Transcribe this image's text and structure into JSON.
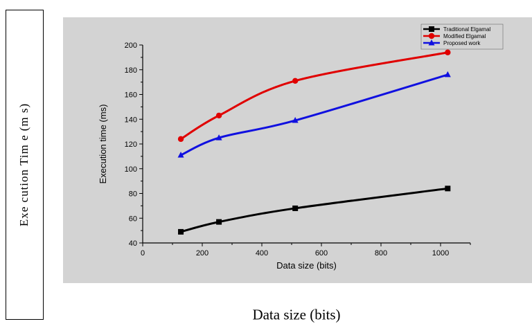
{
  "outer": {
    "ylabel": "Exe cution Tim e (m s)",
    "xlabel": "Data size (bits)"
  },
  "chart_data": {
    "type": "line",
    "xlabel": "Data size (bits)",
    "ylabel": "Execution time (ms)",
    "xlim": [
      0,
      1100
    ],
    "ylim": [
      40,
      200
    ],
    "xticks": [
      0,
      200,
      400,
      600,
      800,
      1000
    ],
    "yticks": [
      40,
      60,
      80,
      100,
      120,
      140,
      160,
      180,
      200
    ],
    "x": [
      128,
      256,
      512,
      1024
    ],
    "legend_position": "top-right",
    "grid": false,
    "series": [
      {
        "name": "Traditional Elgamal",
        "color": "#000000",
        "marker": "square",
        "values": [
          49,
          57,
          68,
          84
        ]
      },
      {
        "name": "Modified Elgamal",
        "color": "#e00000",
        "marker": "circle",
        "values": [
          124,
          143,
          171,
          194
        ]
      },
      {
        "name": "Proposed work",
        "color": "#1010e0",
        "marker": "triangle",
        "values": [
          111,
          125,
          139,
          176
        ]
      }
    ]
  }
}
